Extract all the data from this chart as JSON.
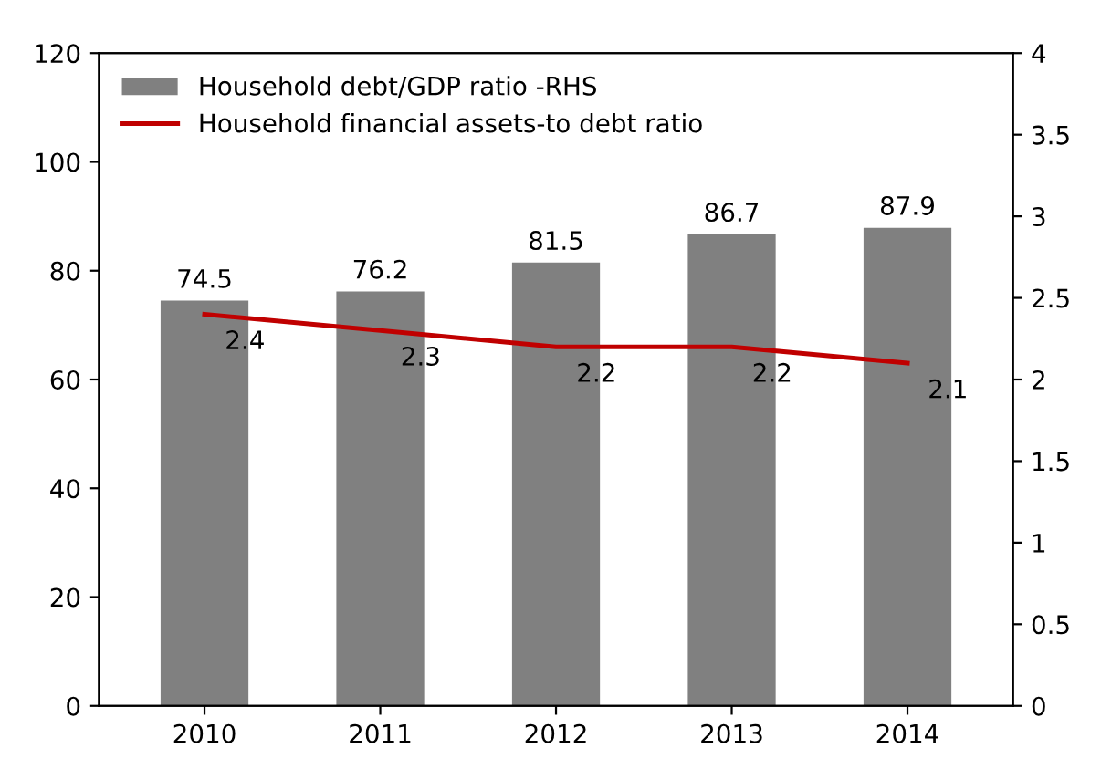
{
  "chart_data": {
    "type": "bar",
    "categories": [
      "2010",
      "2011",
      "2012",
      "2013",
      "2014"
    ],
    "series": [
      {
        "name": "Household debt/GDP ratio -RHS",
        "color": "#808080",
        "values": [
          74.5,
          76.2,
          81.5,
          86.7,
          87.9
        ]
      },
      {
        "name": "Household financial assets-to debt ratio",
        "type": "line",
        "axis": "y2",
        "color": "#c00000",
        "values": [
          2.4,
          2.3,
          2.2,
          2.2,
          2.1
        ]
      }
    ],
    "ylim": [
      0,
      120
    ],
    "yticks": [
      0,
      20,
      40,
      60,
      80,
      100,
      120
    ],
    "y2lim": [
      0,
      4
    ],
    "y2ticks": [
      0,
      0.5,
      1,
      1.5,
      2,
      2.5,
      3,
      3.5,
      4
    ],
    "data_labels": true,
    "grid": false,
    "legend": "top left"
  }
}
